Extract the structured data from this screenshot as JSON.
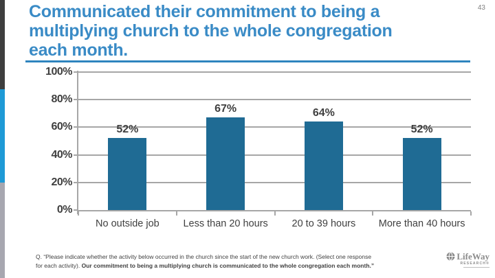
{
  "page": {
    "number": "43"
  },
  "title": {
    "lines": [
      "Communicated their commitment to being a",
      "multiplying church to the whole congregation",
      "each month."
    ]
  },
  "footnote": {
    "line1": "Q. “Please indicate whether the activity below occurred in the church since the start of the new church work. (Select one response",
    "line2_regular": "for each activity). ",
    "line2_bold": "Our commitment to being a multiplying church is communicated to the whole congregation each month.”"
  },
  "logo": {
    "brand": "LifeWay",
    "sub": "RESEARCH®"
  },
  "colors": {
    "title_blue": "#3A8BC6",
    "rule_blue": "#2E84BE",
    "bar_blue": "#1F6B94",
    "strip_blue": "#1E9AD6",
    "strip_dark": "#3E3E3E",
    "strip_gray": "#A7A7B0",
    "axis_gray": "#A6A6A6",
    "text_dark": "#3F3F3F"
  },
  "chart_data": {
    "type": "bar",
    "title": "",
    "categories": [
      "No outside job",
      "Less than 20 hours",
      "20 to 39 hours",
      "More than 40 hours"
    ],
    "values": [
      52,
      67,
      64,
      52
    ],
    "data_labels": [
      "52%",
      "67%",
      "64%",
      "52%"
    ],
    "xlabel": "",
    "ylabel": "",
    "y_axis": {
      "min": 0,
      "max": 100,
      "step": 20,
      "tick_labels": [
        "0%",
        "20%",
        "40%",
        "60%",
        "80%",
        "100%"
      ]
    },
    "grid": true,
    "legend": false,
    "bar_color": "#1F6B94"
  }
}
